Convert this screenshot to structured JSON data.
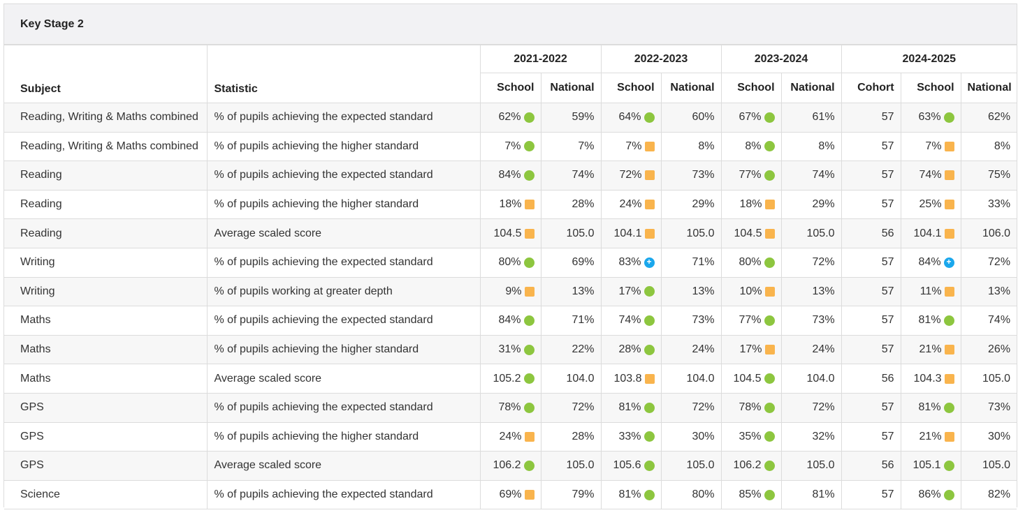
{
  "panel": {
    "title": "Key Stage 2"
  },
  "headers": {
    "subject": "Subject",
    "statistic": "Statistic",
    "years": [
      {
        "label": "2021-2022",
        "cols": [
          "School",
          "National"
        ]
      },
      {
        "label": "2022-2023",
        "cols": [
          "School",
          "National"
        ]
      },
      {
        "label": "2023-2024",
        "cols": [
          "School",
          "National"
        ]
      },
      {
        "label": "2024-2025",
        "cols": [
          "Cohort",
          "School",
          "National"
        ]
      }
    ]
  },
  "indicator_colors": {
    "green": "#8dc63f",
    "amber": "#f9b44d",
    "blue": "#1aa7ec"
  },
  "rows": [
    {
      "subject": "Reading, Writing & Maths combined",
      "statistic": "% of pupils achieving the expected standard",
      "y21_school": "62%",
      "y21_school_ind": "green",
      "y21_nat": "59%",
      "y22_school": "64%",
      "y22_school_ind": "green",
      "y22_nat": "60%",
      "y23_school": "67%",
      "y23_school_ind": "green",
      "y23_nat": "61%",
      "y24_cohort": "57",
      "y24_school": "63%",
      "y24_school_ind": "green",
      "y24_nat": "62%"
    },
    {
      "subject": "Reading, Writing & Maths combined",
      "statistic": "% of pupils achieving the higher standard",
      "y21_school": "7%",
      "y21_school_ind": "green",
      "y21_nat": "7%",
      "y22_school": "7%",
      "y22_school_ind": "amber",
      "y22_nat": "8%",
      "y23_school": "8%",
      "y23_school_ind": "green",
      "y23_nat": "8%",
      "y24_cohort": "57",
      "y24_school": "7%",
      "y24_school_ind": "amber",
      "y24_nat": "8%"
    },
    {
      "subject": "Reading",
      "statistic": "% of pupils achieving the expected standard",
      "y21_school": "84%",
      "y21_school_ind": "green",
      "y21_nat": "74%",
      "y22_school": "72%",
      "y22_school_ind": "amber",
      "y22_nat": "73%",
      "y23_school": "77%",
      "y23_school_ind": "green",
      "y23_nat": "74%",
      "y24_cohort": "57",
      "y24_school": "74%",
      "y24_school_ind": "amber",
      "y24_nat": "75%"
    },
    {
      "subject": "Reading",
      "statistic": "% of pupils achieving the higher standard",
      "y21_school": "18%",
      "y21_school_ind": "amber",
      "y21_nat": "28%",
      "y22_school": "24%",
      "y22_school_ind": "amber",
      "y22_nat": "29%",
      "y23_school": "18%",
      "y23_school_ind": "amber",
      "y23_nat": "29%",
      "y24_cohort": "57",
      "y24_school": "25%",
      "y24_school_ind": "amber",
      "y24_nat": "33%"
    },
    {
      "subject": "Reading",
      "statistic": "Average scaled score",
      "y21_school": "104.5",
      "y21_school_ind": "amber",
      "y21_nat": "105.0",
      "y22_school": "104.1",
      "y22_school_ind": "amber",
      "y22_nat": "105.0",
      "y23_school": "104.5",
      "y23_school_ind": "amber",
      "y23_nat": "105.0",
      "y24_cohort": "56",
      "y24_school": "104.1",
      "y24_school_ind": "amber",
      "y24_nat": "106.0"
    },
    {
      "subject": "Writing",
      "statistic": "% of pupils achieving the expected standard",
      "y21_school": "80%",
      "y21_school_ind": "green",
      "y21_nat": "69%",
      "y22_school": "83%",
      "y22_school_ind": "blue",
      "y22_nat": "71%",
      "y23_school": "80%",
      "y23_school_ind": "green",
      "y23_nat": "72%",
      "y24_cohort": "57",
      "y24_school": "84%",
      "y24_school_ind": "blue",
      "y24_nat": "72%"
    },
    {
      "subject": "Writing",
      "statistic": "% of pupils working at greater depth",
      "y21_school": "9%",
      "y21_school_ind": "amber",
      "y21_nat": "13%",
      "y22_school": "17%",
      "y22_school_ind": "green",
      "y22_nat": "13%",
      "y23_school": "10%",
      "y23_school_ind": "amber",
      "y23_nat": "13%",
      "y24_cohort": "57",
      "y24_school": "11%",
      "y24_school_ind": "amber",
      "y24_nat": "13%"
    },
    {
      "subject": "Maths",
      "statistic": "% of pupils achieving the expected standard",
      "y21_school": "84%",
      "y21_school_ind": "green",
      "y21_nat": "71%",
      "y22_school": "74%",
      "y22_school_ind": "green",
      "y22_nat": "73%",
      "y23_school": "77%",
      "y23_school_ind": "green",
      "y23_nat": "73%",
      "y24_cohort": "57",
      "y24_school": "81%",
      "y24_school_ind": "green",
      "y24_nat": "74%"
    },
    {
      "subject": "Maths",
      "statistic": "% of pupils achieving the higher standard",
      "y21_school": "31%",
      "y21_school_ind": "green",
      "y21_nat": "22%",
      "y22_school": "28%",
      "y22_school_ind": "green",
      "y22_nat": "24%",
      "y23_school": "17%",
      "y23_school_ind": "amber",
      "y23_nat": "24%",
      "y24_cohort": "57",
      "y24_school": "21%",
      "y24_school_ind": "amber",
      "y24_nat": "26%"
    },
    {
      "subject": "Maths",
      "statistic": "Average scaled score",
      "y21_school": "105.2",
      "y21_school_ind": "green",
      "y21_nat": "104.0",
      "y22_school": "103.8",
      "y22_school_ind": "amber",
      "y22_nat": "104.0",
      "y23_school": "104.5",
      "y23_school_ind": "green",
      "y23_nat": "104.0",
      "y24_cohort": "56",
      "y24_school": "104.3",
      "y24_school_ind": "amber",
      "y24_nat": "105.0"
    },
    {
      "subject": "GPS",
      "statistic": "% of pupils achieving the expected standard",
      "y21_school": "78%",
      "y21_school_ind": "green",
      "y21_nat": "72%",
      "y22_school": "81%",
      "y22_school_ind": "green",
      "y22_nat": "72%",
      "y23_school": "78%",
      "y23_school_ind": "green",
      "y23_nat": "72%",
      "y24_cohort": "57",
      "y24_school": "81%",
      "y24_school_ind": "green",
      "y24_nat": "73%"
    },
    {
      "subject": "GPS",
      "statistic": "% of pupils achieving the higher standard",
      "y21_school": "24%",
      "y21_school_ind": "amber",
      "y21_nat": "28%",
      "y22_school": "33%",
      "y22_school_ind": "green",
      "y22_nat": "30%",
      "y23_school": "35%",
      "y23_school_ind": "green",
      "y23_nat": "32%",
      "y24_cohort": "57",
      "y24_school": "21%",
      "y24_school_ind": "amber",
      "y24_nat": "30%"
    },
    {
      "subject": "GPS",
      "statistic": "Average scaled score",
      "y21_school": "106.2",
      "y21_school_ind": "green",
      "y21_nat": "105.0",
      "y22_school": "105.6",
      "y22_school_ind": "green",
      "y22_nat": "105.0",
      "y23_school": "106.2",
      "y23_school_ind": "green",
      "y23_nat": "105.0",
      "y24_cohort": "56",
      "y24_school": "105.1",
      "y24_school_ind": "green",
      "y24_nat": "105.0"
    },
    {
      "subject": "Science",
      "statistic": "% of pupils achieving the expected standard",
      "y21_school": "69%",
      "y21_school_ind": "amber",
      "y21_nat": "79%",
      "y22_school": "81%",
      "y22_school_ind": "green",
      "y22_nat": "80%",
      "y23_school": "85%",
      "y23_school_ind": "green",
      "y23_nat": "81%",
      "y24_cohort": "57",
      "y24_school": "86%",
      "y24_school_ind": "green",
      "y24_nat": "82%"
    }
  ]
}
